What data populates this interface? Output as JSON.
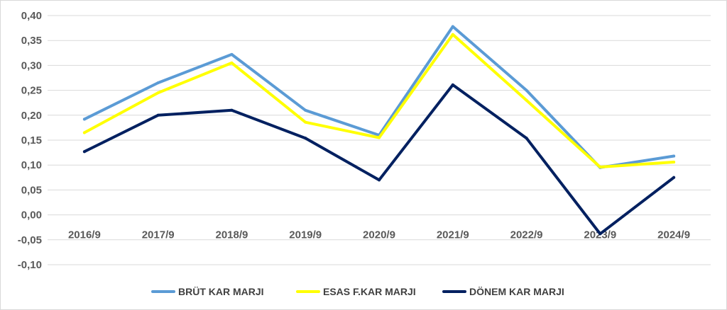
{
  "chart_data": {
    "type": "line",
    "title": "",
    "xlabel": "",
    "ylabel": "",
    "categories": [
      "2016/9",
      "2017/9",
      "2018/9",
      "2019/9",
      "2020/9",
      "2021/9",
      "2022/9",
      "2023/9",
      "2024/9"
    ],
    "ylim": [
      -0.1,
      0.4
    ],
    "yticks": [
      0.4,
      0.35,
      0.3,
      0.25,
      0.2,
      0.15,
      0.1,
      0.05,
      0.0,
      -0.05,
      -0.1
    ],
    "ytick_labels": [
      "0,40",
      "0,35",
      "0,30",
      "0,25",
      "0,20",
      "0,15",
      "0,10",
      "0,05",
      "0,00",
      "-0,05",
      "-0,10"
    ],
    "grid": true,
    "legend_position": "bottom",
    "series": [
      {
        "name": "BRÜT KAR MARJI",
        "color": "#5b9bd5",
        "values": [
          0.192,
          0.265,
          0.322,
          0.21,
          0.16,
          0.378,
          0.25,
          0.095,
          0.118
        ]
      },
      {
        "name": "ESAS F.KAR MARJI",
        "color": "#ffff00",
        "values": [
          0.165,
          0.245,
          0.305,
          0.186,
          0.155,
          0.362,
          0.23,
          0.096,
          0.106
        ]
      },
      {
        "name": "DÖNEM KAR MARJI",
        "color": "#002060",
        "values": [
          0.127,
          0.2,
          0.21,
          0.154,
          0.07,
          0.261,
          0.154,
          -0.038,
          0.075
        ]
      }
    ]
  }
}
